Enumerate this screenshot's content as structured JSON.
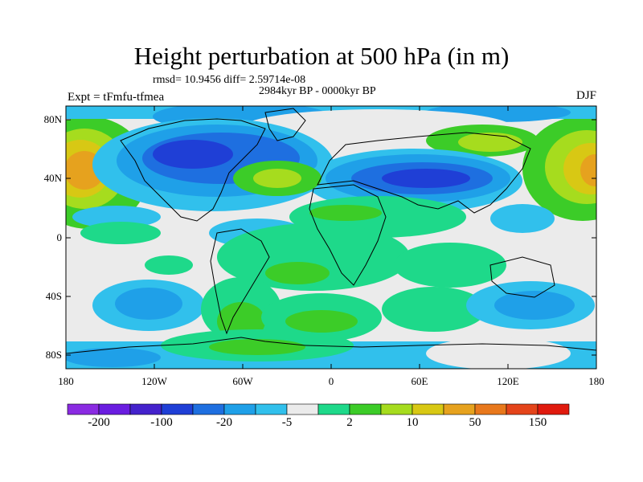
{
  "title": "Height perturbation at 500 hPa (in m)",
  "stats": "rmsd= 10.9456 diff= 2.59714e-08",
  "period": "2984kyr BP - 0000kyr BP",
  "experiment": "Expt = tFmfu-tfmea",
  "season": "DJF",
  "axes": {
    "lat_labels": [
      "80N",
      "40N",
      "0",
      "40S",
      "80S"
    ],
    "lon_labels": [
      "180",
      "120W",
      "60W",
      "0",
      "60E",
      "120E",
      "180"
    ]
  },
  "colorbar": {
    "labels": [
      "-200",
      "-100",
      "-20",
      "-5",
      "2",
      "10",
      "50",
      "150"
    ],
    "colors": [
      "#8a2be2",
      "#6a1de0",
      "#4422cc",
      "#1f3fd6",
      "#1e6fe0",
      "#1fa0e8",
      "#31c0ec",
      "#ebebeb",
      "#1ed98a",
      "#3ccc28",
      "#a6dc1e",
      "#d8c814",
      "#e6a21e",
      "#e8781c",
      "#e4441a",
      "#e01a0e"
    ]
  },
  "map_colors": {
    "background": "#ebebeb",
    "coastline": "#000000"
  }
}
